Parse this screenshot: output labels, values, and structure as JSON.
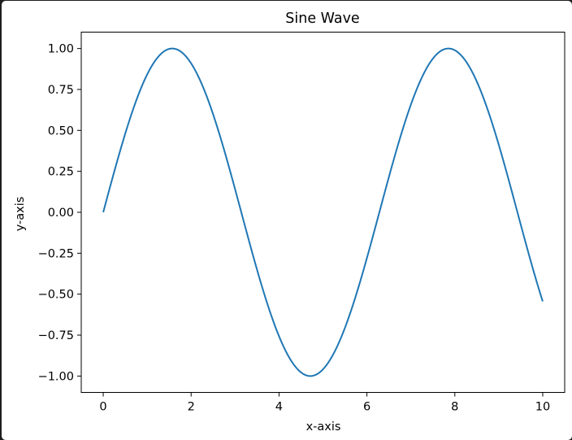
{
  "chart_data": {
    "type": "line",
    "title": "Sine Wave",
    "xlabel": "x-axis",
    "ylabel": "y-axis",
    "xlim": [
      -0.5,
      10.5
    ],
    "ylim": [
      -1.1,
      1.1
    ],
    "grid": false,
    "x_ticks": [
      0,
      2,
      4,
      6,
      8,
      10
    ],
    "x_tick_labels": [
      "0",
      "2",
      "4",
      "6",
      "8",
      "10"
    ],
    "y_ticks": [
      1.0,
      0.75,
      0.5,
      0.25,
      0.0,
      -0.25,
      -0.5,
      -0.75,
      -1.0
    ],
    "y_tick_labels": [
      "1.00",
      "0.75",
      "0.50",
      "0.25",
      "0.00",
      "−0.25",
      "−0.50",
      "−0.75",
      "−1.00"
    ],
    "series": [
      {
        "function": "sin(x)",
        "color": "#1f77b4",
        "x_range": [
          0,
          10
        ],
        "sample_points": [
          {
            "x": 0,
            "y": 0.0
          },
          {
            "x": 1.571,
            "y": 1.0
          },
          {
            "x": 3.142,
            "y": 0.0
          },
          {
            "x": 4.712,
            "y": -1.0
          },
          {
            "x": 6.283,
            "y": 0.0
          },
          {
            "x": 7.854,
            "y": 1.0
          },
          {
            "x": 10,
            "y": -0.544
          }
        ]
      }
    ]
  }
}
